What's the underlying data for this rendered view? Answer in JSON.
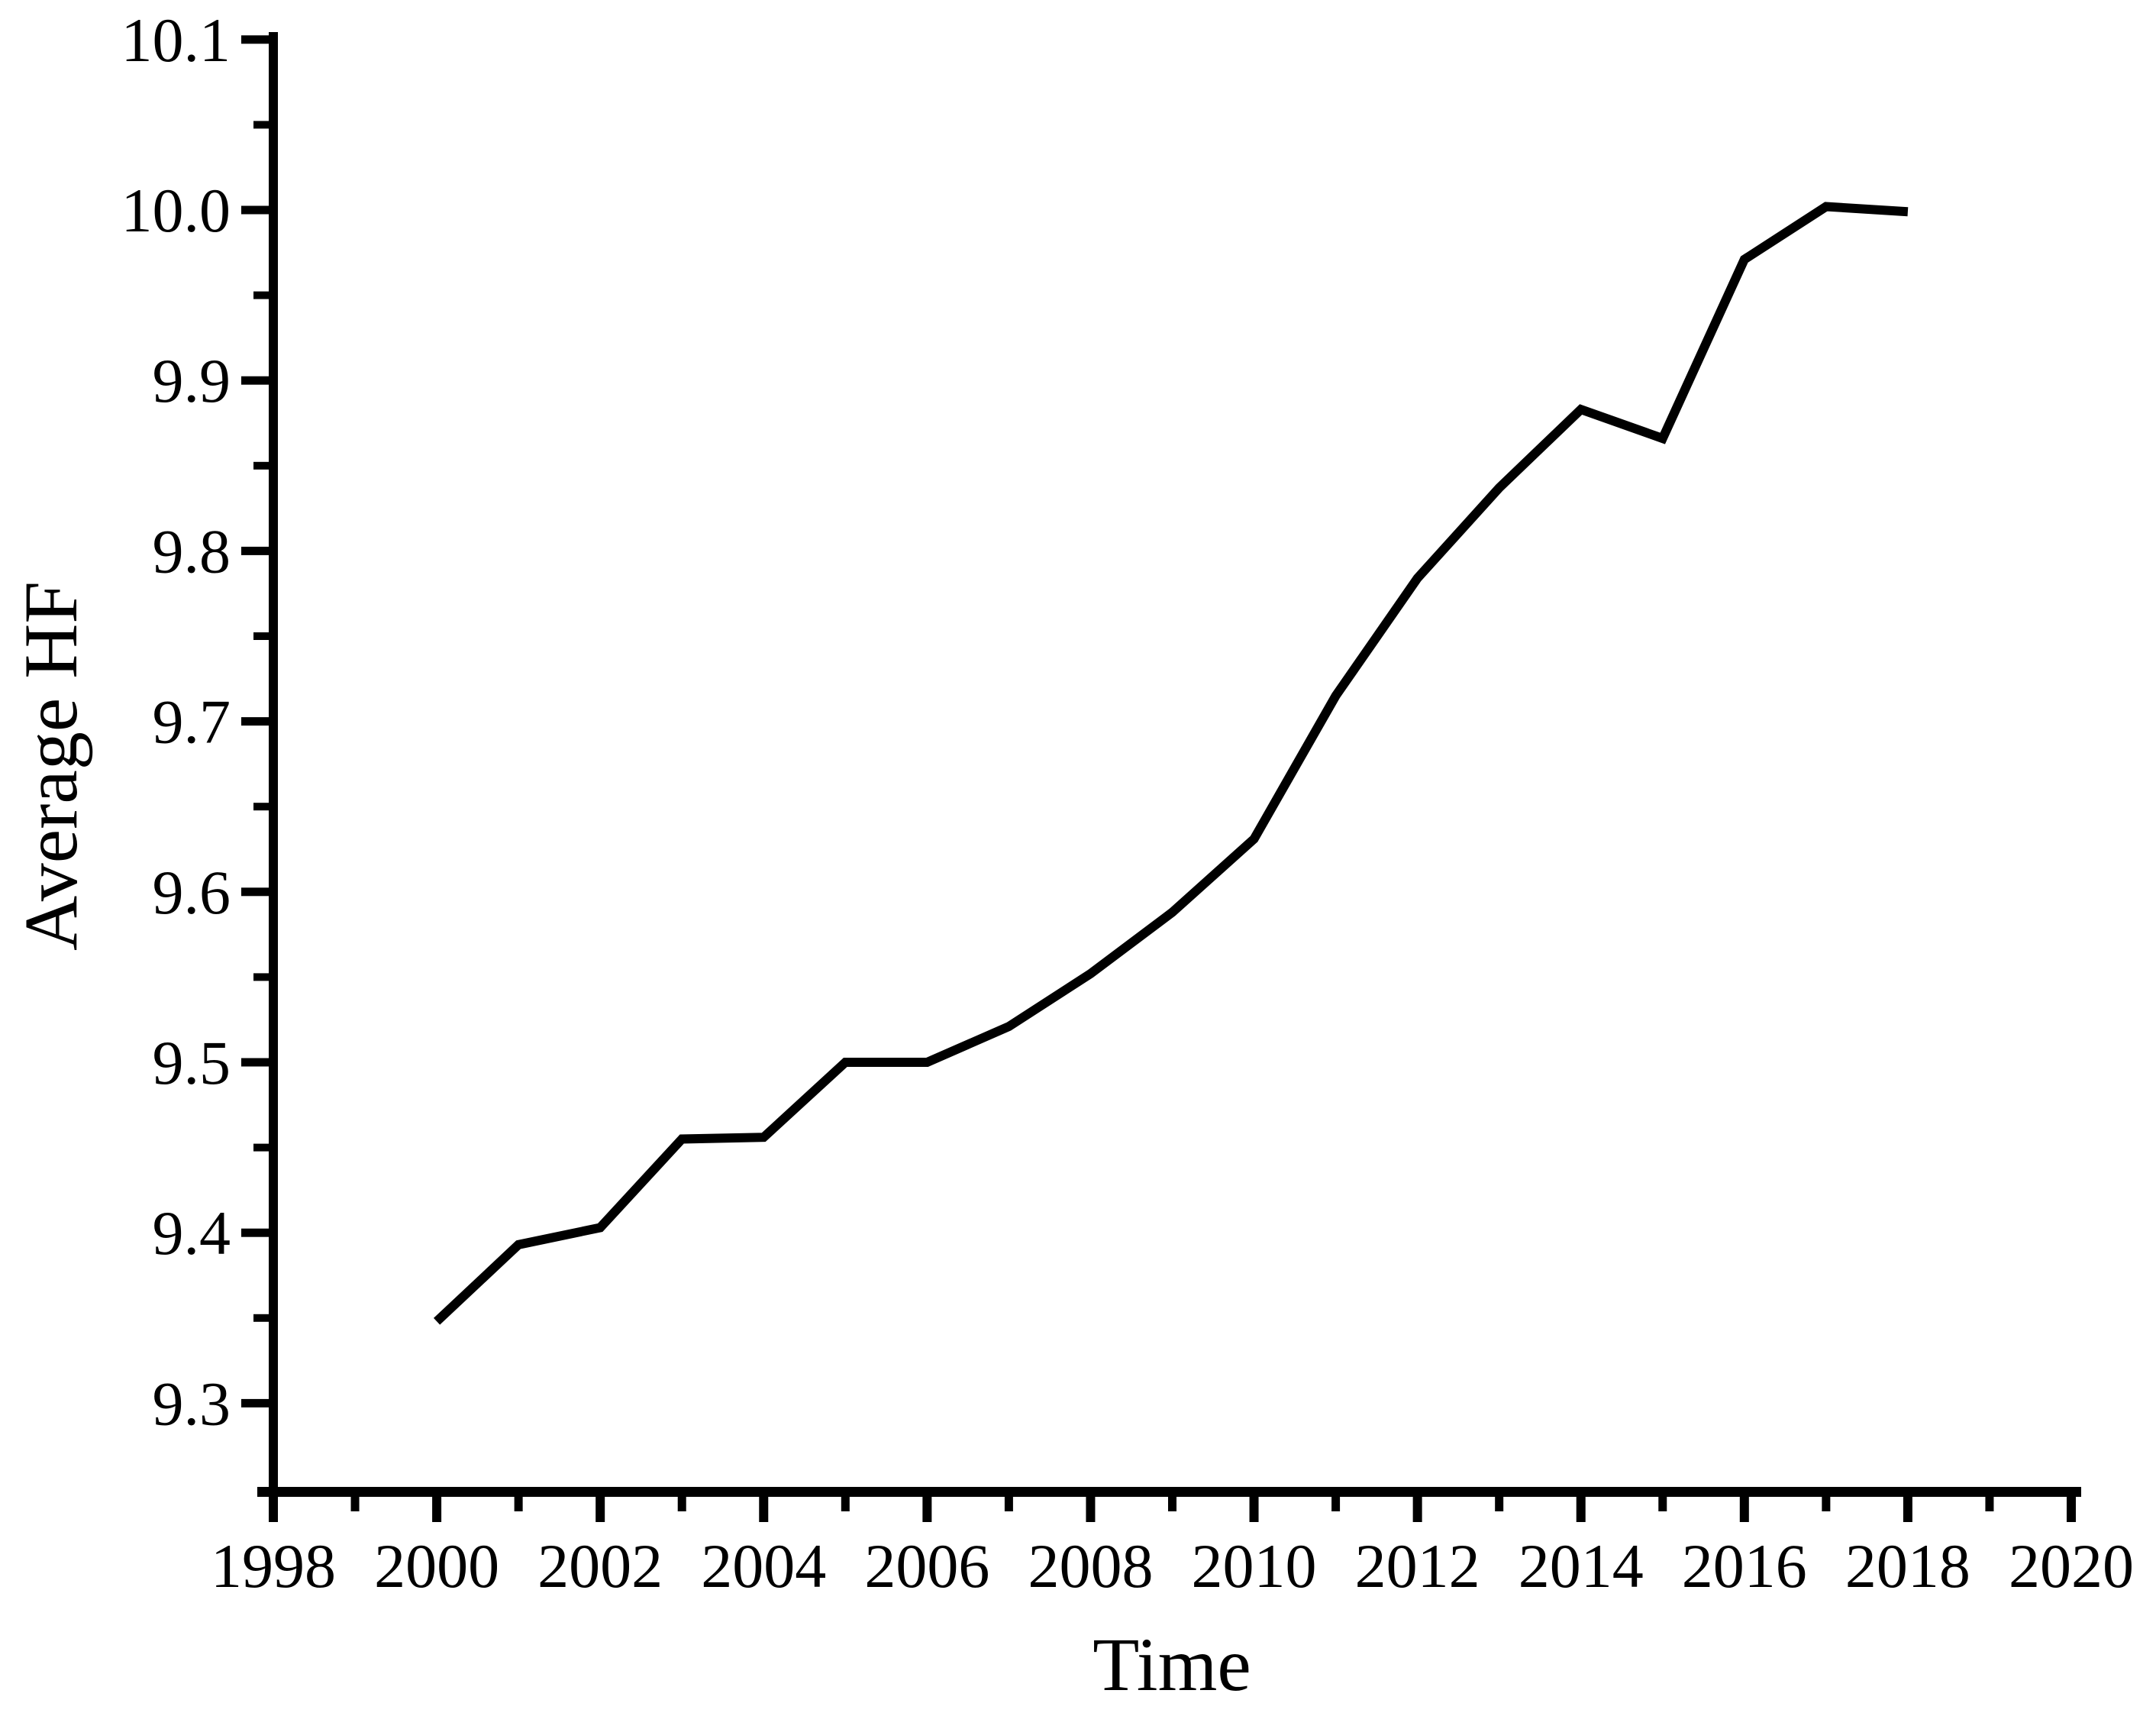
{
  "page": {
    "background": "#ffffff"
  },
  "chart_data": {
    "type": "line",
    "title": "",
    "xlabel": "Time",
    "ylabel": "Average HF",
    "x": [
      2000,
      2001,
      2002,
      2003,
      2004,
      2005,
      2006,
      2007,
      2008,
      2009,
      2010,
      2011,
      2012,
      2013,
      2014,
      2015,
      2016,
      2017,
      2018
    ],
    "values": [
      9.348,
      9.393,
      9.403,
      9.455,
      9.456,
      9.5,
      9.5,
      9.521,
      9.552,
      9.588,
      9.631,
      9.715,
      9.784,
      9.837,
      9.883,
      9.866,
      9.971,
      10.002,
      9.999
    ],
    "series_name": "Average HF",
    "line_color": "#000000",
    "line_width": 12,
    "xlim": [
      1997.8,
      2020.2
    ],
    "ylim": [
      9.24,
      10.11
    ],
    "x_major_ticks": [
      1998,
      2000,
      2002,
      2004,
      2006,
      2008,
      2010,
      2012,
      2014,
      2016,
      2018,
      2020
    ],
    "x_major_tick_labels": [
      "1998",
      "2000",
      "2002",
      "2004",
      "2006",
      "2008",
      "2010",
      "2012",
      "2014",
      "2016",
      "2018",
      "2020"
    ],
    "x_minor_ticks": [
      1999,
      2001,
      2003,
      2005,
      2007,
      2009,
      2011,
      2013,
      2015,
      2017,
      2019
    ],
    "y_major_ticks": [
      10.1,
      10.0,
      9.9,
      9.8,
      9.7,
      9.6,
      9.5,
      9.4,
      9.3
    ],
    "y_major_tick_labels": [
      "10.1",
      "10.0",
      "9.9",
      "9.8",
      "9.7",
      "9.6",
      "9.5",
      "9.4",
      "9.3"
    ],
    "y_minor_ticks": [
      10.05,
      9.95,
      9.85,
      9.75,
      9.65,
      9.55,
      9.45,
      9.35
    ],
    "grid": false,
    "legend": false,
    "axis_color": "#000000",
    "background": "#ffffff"
  }
}
